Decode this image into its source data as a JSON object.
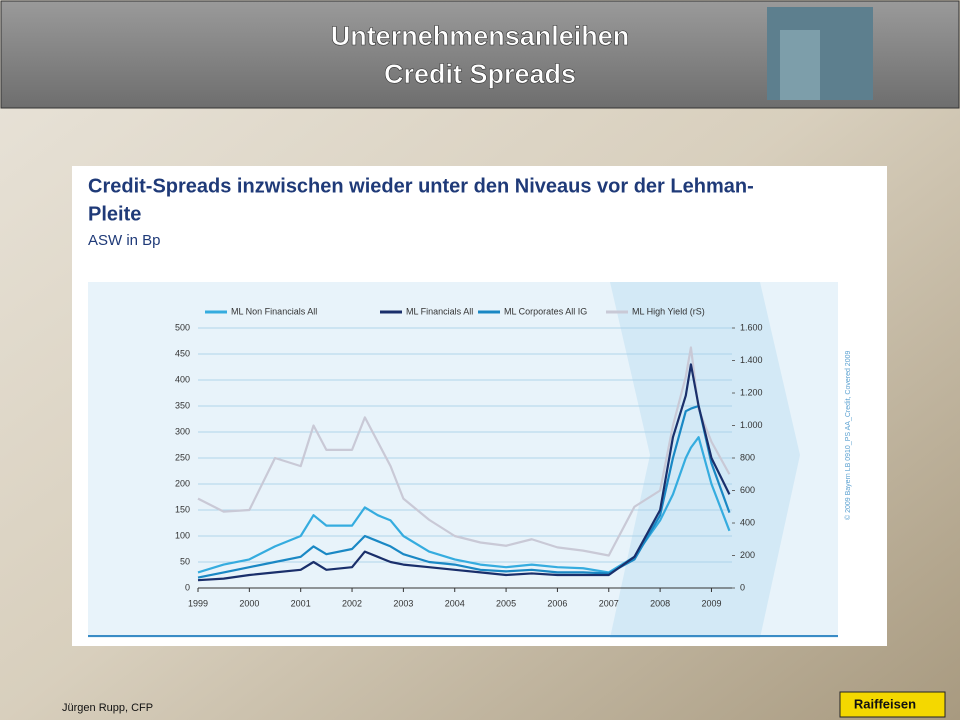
{
  "header": {
    "title_lines": [
      "Unternehmensanleihen",
      "Credit Spreads"
    ]
  },
  "footer": {
    "author": "Jürgen Rupp, CFP",
    "logo": "Raiffeisen"
  },
  "chart_data": {
    "type": "line",
    "title": [
      "Credit-Spreads inzwischen wieder unter den Niveaus vor der Lehman-",
      "Pleite"
    ],
    "subtitle": "ASW in Bp",
    "copyright": "© 2009 Bayern LB 0910_PS AA_Credit, Covered 2009",
    "x": [
      1999,
      1999.5,
      2000,
      2000.5,
      2001,
      2001.25,
      2001.5,
      2002,
      2002.25,
      2002.5,
      2002.75,
      2003,
      2003.5,
      2004,
      2004.5,
      2005,
      2005.5,
      2006,
      2006.5,
      2007,
      2007.5,
      2008,
      2008.25,
      2008.5,
      2008.6,
      2008.75,
      2009,
      2009.35
    ],
    "xlim": [
      1999,
      2009.4
    ],
    "xticks": [
      1999,
      2000,
      2001,
      2002,
      2003,
      2004,
      2005,
      2006,
      2007,
      2008,
      2009
    ],
    "ylim": [
      0,
      500
    ],
    "yticks": [
      0,
      50,
      100,
      150,
      200,
      250,
      300,
      350,
      400,
      450,
      500
    ],
    "y2lim": [
      0,
      1600
    ],
    "y2ticks": [
      0,
      200,
      400,
      600,
      800,
      {
        "value": 1000,
        "label": "1.000"
      },
      {
        "value": 1200,
        "label": "1.200"
      },
      {
        "value": 1400,
        "label": "1.400"
      },
      {
        "value": 1600,
        "label": "1.600"
      }
    ],
    "grid": true,
    "legend": "top",
    "series": [
      {
        "name": "ML Non Financials All",
        "color": "#35acdf",
        "values": [
          30,
          45,
          55,
          80,
          100,
          140,
          120,
          120,
          155,
          140,
          130,
          100,
          70,
          55,
          45,
          40,
          45,
          40,
          38,
          30,
          60,
          130,
          180,
          250,
          270,
          290,
          200,
          110
        ]
      },
      {
        "name": "ML Financials All",
        "color": "#1a2f6b",
        "values": [
          15,
          18,
          25,
          30,
          35,
          50,
          35,
          40,
          70,
          60,
          50,
          45,
          40,
          35,
          30,
          25,
          28,
          25,
          25,
          25,
          60,
          150,
          290,
          370,
          430,
          350,
          250,
          180
        ]
      },
      {
        "name": "ML Corporates All IG",
        "color": "#1a88c4",
        "values": [
          20,
          30,
          40,
          50,
          60,
          80,
          65,
          75,
          100,
          90,
          80,
          65,
          50,
          45,
          35,
          32,
          35,
          30,
          30,
          28,
          55,
          140,
          250,
          340,
          345,
          350,
          240,
          145
        ]
      },
      {
        "name": "ML High Yield (rS)",
        "color": "#c9c9d6",
        "axis": "y2",
        "values": [
          550,
          470,
          480,
          800,
          750,
          1000,
          850,
          850,
          1050,
          900,
          750,
          550,
          420,
          320,
          280,
          260,
          300,
          250,
          230,
          200,
          500,
          600,
          1000,
          1300,
          1480,
          1100,
          900,
          700
        ]
      }
    ]
  }
}
